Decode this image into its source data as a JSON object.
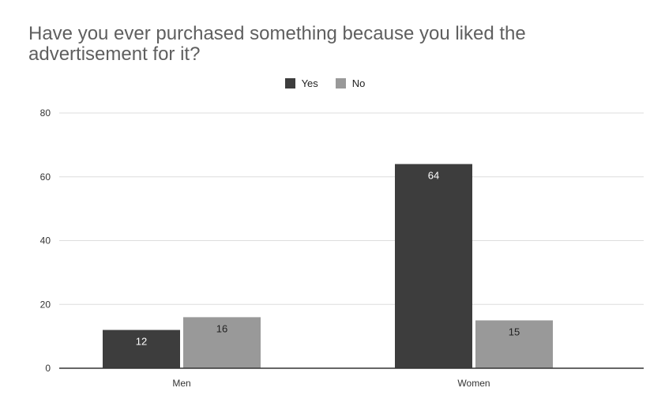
{
  "chart_data": {
    "type": "bar",
    "title": "Have you ever purchased something because you liked the advertisement for it?",
    "categories": [
      "Men",
      "Women"
    ],
    "series": [
      {
        "name": "Yes",
        "values": [
          12,
          64
        ],
        "color": "#3d3d3d",
        "label_color": "#ffffff"
      },
      {
        "name": "No",
        "values": [
          16,
          15
        ],
        "color": "#999999",
        "label_color": "#222222"
      }
    ],
    "ylim": [
      0,
      80
    ],
    "yticks": [
      0,
      20,
      40,
      60,
      80
    ],
    "grid": true,
    "legend_position": "top-center",
    "gridline_color": "#dddddd",
    "axis_color": "#333333"
  }
}
